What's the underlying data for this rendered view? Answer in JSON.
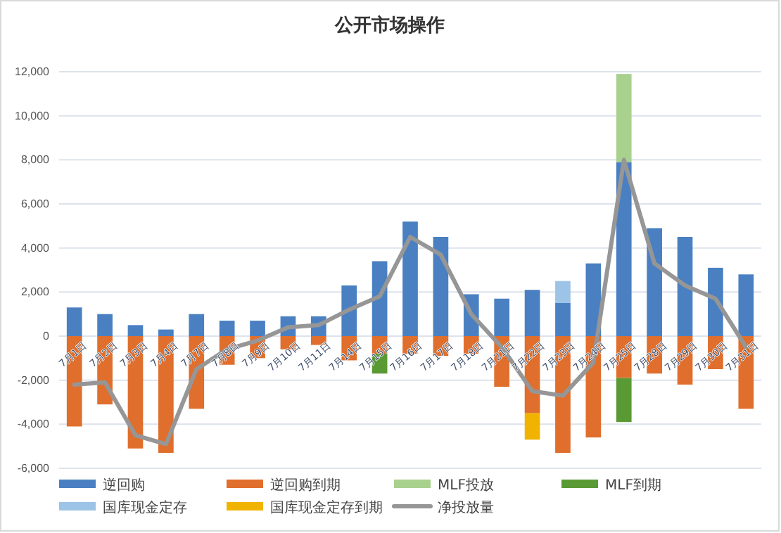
{
  "chart_data": {
    "type": "bar",
    "title": "公开市场操作",
    "stacked": true,
    "categories": [
      "7月1日",
      "7月2日",
      "7月3日",
      "7月4日",
      "7月7日",
      "7月8日",
      "7月9日",
      "7月10日",
      "7月11日",
      "7月14日",
      "7月15日",
      "7月16日",
      "7月17日",
      "7月18日",
      "7月21日",
      "7月22日",
      "7月23日",
      "7月24日",
      "7月25日",
      "7月28日",
      "7月29日",
      "7月30日",
      "7月31日"
    ],
    "series": [
      {
        "name": "逆回购",
        "color": "#4a80c2",
        "values": [
          1300,
          1000,
          500,
          300,
          1000,
          700,
          700,
          900,
          900,
          2300,
          3400,
          5200,
          4500,
          1900,
          1700,
          2100,
          1500,
          3300,
          7900,
          4900,
          4500,
          3100,
          2800
        ]
      },
      {
        "name": "逆回购到期",
        "color": "#e06e2c",
        "values": [
          -4100,
          -3100,
          -5100,
          -5300,
          -3300,
          -1300,
          -1000,
          -600,
          -400,
          -1100,
          -800,
          -800,
          -900,
          -800,
          -2300,
          -3500,
          -5300,
          -4600,
          -1900,
          -1700,
          -2200,
          -1500,
          -3300
        ]
      },
      {
        "name": "MLF投放",
        "color": "#a9d18e",
        "values": [
          null,
          null,
          null,
          null,
          null,
          null,
          null,
          null,
          null,
          null,
          null,
          null,
          null,
          null,
          null,
          null,
          null,
          null,
          4000,
          null,
          null,
          null,
          null
        ]
      },
      {
        "name": "MLF到期",
        "color": "#5a9a34",
        "values": [
          null,
          null,
          null,
          null,
          null,
          null,
          null,
          null,
          null,
          null,
          -900,
          null,
          null,
          null,
          null,
          null,
          null,
          null,
          -2000,
          null,
          null,
          null,
          null
        ]
      },
      {
        "name": "国库现金定存",
        "color": "#9dc3e6",
        "values": [
          null,
          null,
          null,
          null,
          null,
          null,
          null,
          null,
          null,
          null,
          null,
          null,
          null,
          null,
          null,
          null,
          1000,
          null,
          null,
          null,
          null,
          null,
          null
        ]
      },
      {
        "name": "国库现金定存到期",
        "color": "#f0b400",
        "values": [
          null,
          null,
          null,
          null,
          null,
          null,
          null,
          null,
          null,
          null,
          null,
          null,
          null,
          null,
          null,
          -1200,
          null,
          null,
          null,
          null,
          null,
          null,
          null
        ]
      },
      {
        "name": "净投放量",
        "type": "line",
        "color": "#969696",
        "values": [
          -2200,
          -2100,
          -4500,
          -4900,
          -1500,
          -600,
          -200,
          400,
          500,
          1200,
          1800,
          4500,
          3700,
          1000,
          -500,
          -2500,
          -2700,
          -1200,
          8000,
          3300,
          2300,
          1700,
          -500
        ]
      }
    ],
    "ylim": [
      -6000,
      12000
    ],
    "yticks": [
      {
        "value": -6000,
        "label": "-6,000"
      },
      {
        "value": -4000,
        "label": "-4,000"
      },
      {
        "value": -2000,
        "label": "-2,000"
      },
      {
        "value": 0,
        "label": "0"
      },
      {
        "value": 2000,
        "label": "2,000"
      },
      {
        "value": 4000,
        "label": "4,000"
      },
      {
        "value": 6000,
        "label": "6,000"
      },
      {
        "value": 8000,
        "label": "8,000"
      },
      {
        "value": 10000,
        "label": "10,000"
      },
      {
        "value": 12000,
        "label": "12,000"
      }
    ],
    "grid": "y",
    "legend": "bottom",
    "line_style": "solid",
    "marker": "none"
  }
}
